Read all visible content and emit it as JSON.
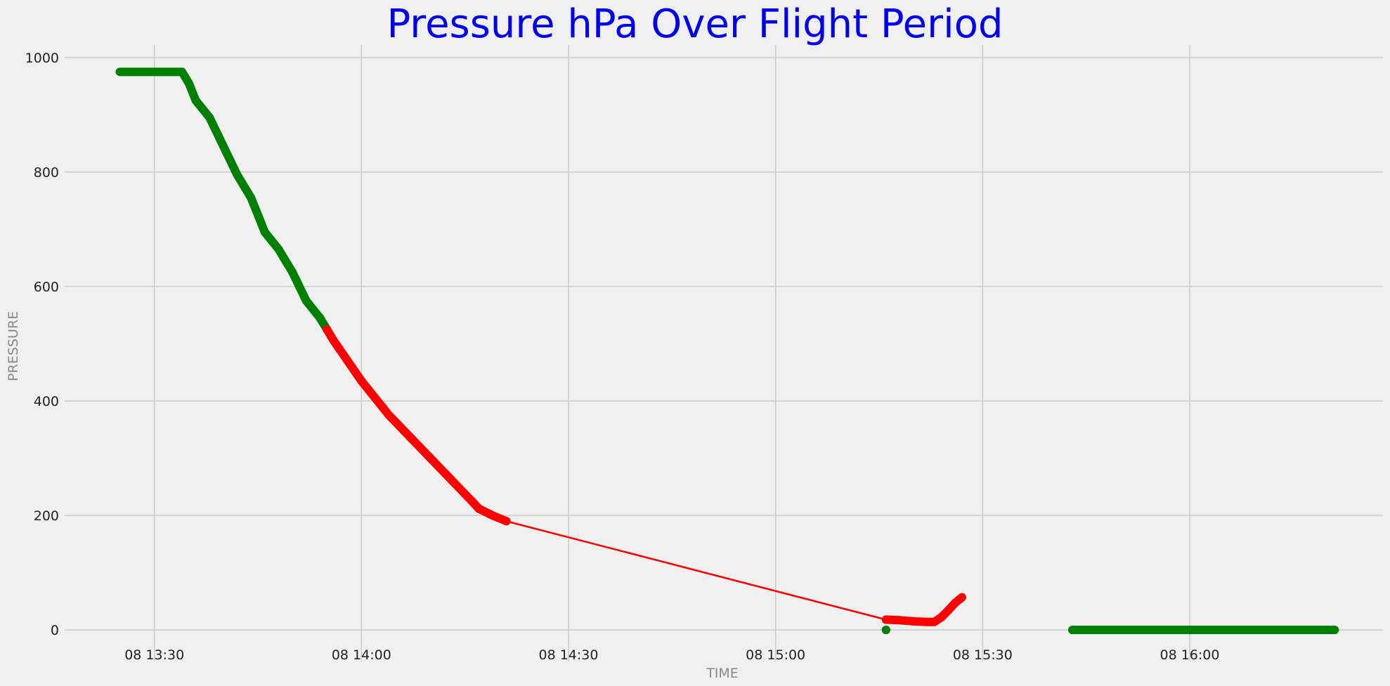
{
  "chart_data": {
    "type": "line",
    "title": "Pressure hPa Over Flight Period",
    "xlabel": "TIME",
    "ylabel": "PRESSURE",
    "grid": true,
    "xlim": [
      "13:17",
      "16:28"
    ],
    "ylim": [
      -55,
      1022
    ],
    "x_ticks": [
      "08 13:30",
      "08 14:00",
      "08 14:30",
      "08 15:00",
      "08 15:30",
      "08 16:00"
    ],
    "y_ticks": [
      0,
      200,
      400,
      600,
      800,
      1000
    ],
    "colors": {
      "title": "#0000ee",
      "normal": "#008000",
      "anomaly": "#ff0000",
      "background": "#f0f0f0",
      "grid": "#cbcbcb"
    },
    "series": [
      {
        "color": "#008000",
        "style": "markers",
        "points": [
          [
            "13:25",
            975
          ],
          [
            "13:28",
            975
          ],
          [
            "13:31",
            975
          ],
          [
            "13:34",
            975
          ],
          [
            "13:35",
            955
          ],
          [
            "13:36",
            925
          ],
          [
            "13:38",
            895
          ],
          [
            "13:40",
            845
          ],
          [
            "13:42",
            795
          ],
          [
            "13:44",
            755
          ],
          [
            "13:46",
            695
          ],
          [
            "13:48",
            665
          ],
          [
            "13:50",
            625
          ],
          [
            "13:52",
            575
          ],
          [
            "13:54",
            545
          ],
          [
            "13:55",
            525
          ]
        ]
      },
      {
        "color": "#ff0000",
        "style": "markers",
        "points": [
          [
            "13:55",
            525
          ],
          [
            "13:56",
            505
          ],
          [
            "13:58",
            470
          ],
          [
            "14:00",
            435
          ],
          [
            "14:02",
            405
          ],
          [
            "14:04",
            375
          ],
          [
            "14:06",
            350
          ],
          [
            "14:08",
            325
          ],
          [
            "14:10",
            300
          ],
          [
            "14:12",
            275
          ],
          [
            "14:14",
            250
          ],
          [
            "14:16",
            225
          ],
          [
            "14:17",
            212
          ],
          [
            "14:19",
            200
          ],
          [
            "14:21",
            190
          ]
        ]
      },
      {
        "color": "#ff0000",
        "style": "line",
        "points": [
          [
            "14:21",
            190
          ],
          [
            "15:16",
            18
          ]
        ]
      },
      {
        "color": "#ff0000",
        "style": "markers",
        "points": [
          [
            "15:16",
            18
          ],
          [
            "15:18",
            17
          ],
          [
            "15:20",
            15
          ],
          [
            "15:22",
            14
          ],
          [
            "15:23",
            14
          ],
          [
            "15:24",
            22
          ],
          [
            "15:25",
            34
          ],
          [
            "15:26",
            47
          ],
          [
            "15:27",
            57
          ]
        ]
      },
      {
        "color": "#008000",
        "style": "markers",
        "points": [
          [
            "15:16",
            0
          ],
          [
            "15:16",
            0
          ]
        ]
      },
      {
        "color": "#008000",
        "style": "markers",
        "points": [
          [
            "15:43",
            0
          ],
          [
            "16:00",
            0
          ],
          [
            "16:20",
            0
          ],
          [
            "16:21",
            0
          ]
        ]
      }
    ]
  }
}
